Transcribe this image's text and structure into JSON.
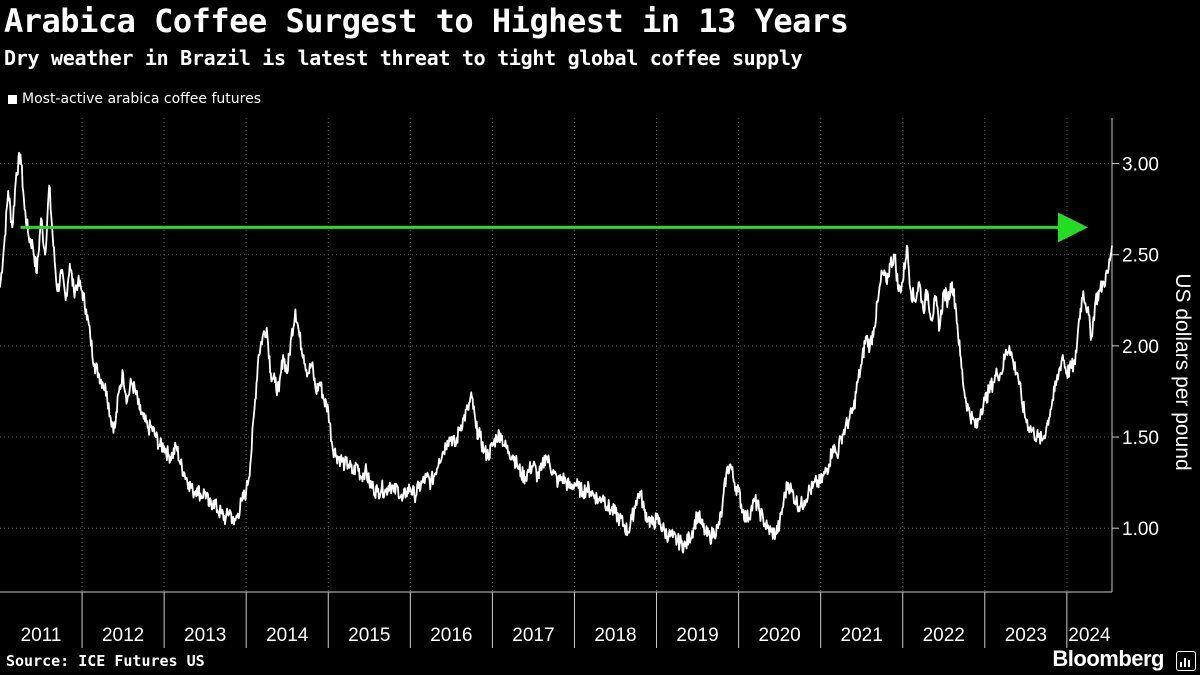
{
  "header": {
    "title": "Arabica Coffee Surgest to Highest in 13 Years",
    "subtitle": "Dry weather in Brazil is latest threat to tight global coffee supply"
  },
  "footer": {
    "source": "Source: ICE Futures US",
    "brand": "Bloomberg"
  },
  "colors": {
    "background": "#000000",
    "series": "#ffffff",
    "arrow": "#22dd22",
    "grid": "#555555"
  },
  "chart_data": {
    "type": "line",
    "xlabel": "",
    "ylabel": "US dollars per pound",
    "legend": "top-left",
    "grid": true,
    "xlim": [
      2011.0,
      2024.55
    ],
    "ylim": [
      0.65,
      3.25
    ],
    "y_axis_side": "right",
    "y_ticks": [
      1.0,
      1.5,
      2.0,
      2.5,
      3.0
    ],
    "y_tick_labels": [
      "1.00",
      "1.50",
      "2.00",
      "2.50",
      "3.00"
    ],
    "x_tick_labels": [
      "2011",
      "2012",
      "2013",
      "2014",
      "2015",
      "2016",
      "2017",
      "2018",
      "2019",
      "2020",
      "2021",
      "2022",
      "2023",
      "2024"
    ],
    "series": [
      {
        "name": "Most-active arabica coffee futures",
        "points": [
          [
            2011.0,
            2.32
          ],
          [
            2011.05,
            2.55
          ],
          [
            2011.1,
            2.85
          ],
          [
            2011.15,
            2.65
          ],
          [
            2011.2,
            2.95
          ],
          [
            2011.25,
            3.05
          ],
          [
            2011.3,
            2.75
          ],
          [
            2011.35,
            2.6
          ],
          [
            2011.4,
            2.55
          ],
          [
            2011.45,
            2.4
          ],
          [
            2011.5,
            2.7
          ],
          [
            2011.55,
            2.5
          ],
          [
            2011.6,
            2.88
          ],
          [
            2011.65,
            2.55
          ],
          [
            2011.7,
            2.3
          ],
          [
            2011.75,
            2.4
          ],
          [
            2011.8,
            2.25
          ],
          [
            2011.85,
            2.45
          ],
          [
            2011.9,
            2.3
          ],
          [
            2011.95,
            2.35
          ],
          [
            2012.0,
            2.3
          ],
          [
            2012.05,
            2.2
          ],
          [
            2012.1,
            2.05
          ],
          [
            2012.15,
            1.9
          ],
          [
            2012.2,
            1.85
          ],
          [
            2012.25,
            1.8
          ],
          [
            2012.3,
            1.75
          ],
          [
            2012.35,
            1.6
          ],
          [
            2012.4,
            1.55
          ],
          [
            2012.45,
            1.75
          ],
          [
            2012.5,
            1.85
          ],
          [
            2012.55,
            1.7
          ],
          [
            2012.6,
            1.8
          ],
          [
            2012.65,
            1.75
          ],
          [
            2012.7,
            1.65
          ],
          [
            2012.75,
            1.6
          ],
          [
            2012.8,
            1.55
          ],
          [
            2012.85,
            1.55
          ],
          [
            2012.9,
            1.5
          ],
          [
            2012.95,
            1.45
          ],
          [
            2013.0,
            1.45
          ],
          [
            2013.05,
            1.4
          ],
          [
            2013.1,
            1.4
          ],
          [
            2013.15,
            1.45
          ],
          [
            2013.2,
            1.35
          ],
          [
            2013.25,
            1.3
          ],
          [
            2013.3,
            1.25
          ],
          [
            2013.35,
            1.2
          ],
          [
            2013.4,
            1.22
          ],
          [
            2013.45,
            1.18
          ],
          [
            2013.5,
            1.2
          ],
          [
            2013.55,
            1.12
          ],
          [
            2013.6,
            1.15
          ],
          [
            2013.65,
            1.1
          ],
          [
            2013.7,
            1.08
          ],
          [
            2013.75,
            1.05
          ],
          [
            2013.8,
            1.1
          ],
          [
            2013.85,
            1.02
          ],
          [
            2013.9,
            1.08
          ],
          [
            2013.95,
            1.15
          ],
          [
            2014.0,
            1.2
          ],
          [
            2014.05,
            1.35
          ],
          [
            2014.1,
            1.65
          ],
          [
            2014.15,
            1.95
          ],
          [
            2014.2,
            2.05
          ],
          [
            2014.25,
            2.1
          ],
          [
            2014.3,
            1.85
          ],
          [
            2014.35,
            1.8
          ],
          [
            2014.4,
            1.75
          ],
          [
            2014.45,
            1.95
          ],
          [
            2014.5,
            1.85
          ],
          [
            2014.55,
            2.05
          ],
          [
            2014.6,
            2.2
          ],
          [
            2014.65,
            2.05
          ],
          [
            2014.7,
            1.95
          ],
          [
            2014.75,
            1.85
          ],
          [
            2014.8,
            1.9
          ],
          [
            2014.85,
            1.75
          ],
          [
            2014.9,
            1.8
          ],
          [
            2014.95,
            1.7
          ],
          [
            2015.0,
            1.65
          ],
          [
            2015.05,
            1.45
          ],
          [
            2015.1,
            1.4
          ],
          [
            2015.15,
            1.38
          ],
          [
            2015.2,
            1.35
          ],
          [
            2015.25,
            1.35
          ],
          [
            2015.3,
            1.3
          ],
          [
            2015.35,
            1.35
          ],
          [
            2015.4,
            1.28
          ],
          [
            2015.45,
            1.32
          ],
          [
            2015.5,
            1.25
          ],
          [
            2015.55,
            1.22
          ],
          [
            2015.6,
            1.2
          ],
          [
            2015.65,
            1.22
          ],
          [
            2015.7,
            1.2
          ],
          [
            2015.75,
            1.25
          ],
          [
            2015.8,
            1.2
          ],
          [
            2015.85,
            1.22
          ],
          [
            2015.9,
            1.15
          ],
          [
            2015.95,
            1.2
          ],
          [
            2016.0,
            1.22
          ],
          [
            2016.05,
            1.18
          ],
          [
            2016.1,
            1.22
          ],
          [
            2016.15,
            1.25
          ],
          [
            2016.2,
            1.28
          ],
          [
            2016.25,
            1.25
          ],
          [
            2016.3,
            1.3
          ],
          [
            2016.35,
            1.38
          ],
          [
            2016.4,
            1.42
          ],
          [
            2016.45,
            1.48
          ],
          [
            2016.5,
            1.5
          ],
          [
            2016.55,
            1.45
          ],
          [
            2016.6,
            1.55
          ],
          [
            2016.65,
            1.6
          ],
          [
            2016.7,
            1.65
          ],
          [
            2016.75,
            1.72
          ],
          [
            2016.8,
            1.55
          ],
          [
            2016.85,
            1.5
          ],
          [
            2016.9,
            1.42
          ],
          [
            2016.95,
            1.4
          ],
          [
            2017.0,
            1.45
          ],
          [
            2017.05,
            1.5
          ],
          [
            2017.1,
            1.52
          ],
          [
            2017.15,
            1.45
          ],
          [
            2017.2,
            1.42
          ],
          [
            2017.25,
            1.4
          ],
          [
            2017.3,
            1.35
          ],
          [
            2017.35,
            1.3
          ],
          [
            2017.4,
            1.28
          ],
          [
            2017.45,
            1.32
          ],
          [
            2017.5,
            1.35
          ],
          [
            2017.55,
            1.28
          ],
          [
            2017.6,
            1.32
          ],
          [
            2017.65,
            1.4
          ],
          [
            2017.7,
            1.35
          ],
          [
            2017.75,
            1.3
          ],
          [
            2017.8,
            1.25
          ],
          [
            2017.85,
            1.28
          ],
          [
            2017.9,
            1.25
          ],
          [
            2017.95,
            1.22
          ],
          [
            2018.0,
            1.25
          ],
          [
            2018.05,
            1.22
          ],
          [
            2018.1,
            1.2
          ],
          [
            2018.15,
            1.22
          ],
          [
            2018.2,
            1.2
          ],
          [
            2018.25,
            1.18
          ],
          [
            2018.3,
            1.15
          ],
          [
            2018.35,
            1.18
          ],
          [
            2018.4,
            1.12
          ],
          [
            2018.45,
            1.1
          ],
          [
            2018.5,
            1.08
          ],
          [
            2018.55,
            1.05
          ],
          [
            2018.6,
            1.02
          ],
          [
            2018.65,
            0.98
          ],
          [
            2018.7,
            1.05
          ],
          [
            2018.75,
            1.15
          ],
          [
            2018.8,
            1.2
          ],
          [
            2018.85,
            1.1
          ],
          [
            2018.9,
            1.05
          ],
          [
            2018.95,
            1.02
          ],
          [
            2019.0,
            1.05
          ],
          [
            2019.05,
            1.02
          ],
          [
            2019.1,
            0.98
          ],
          [
            2019.15,
            0.96
          ],
          [
            2019.2,
            0.95
          ],
          [
            2019.25,
            0.93
          ],
          [
            2019.3,
            0.92
          ],
          [
            2019.35,
            0.9
          ],
          [
            2019.4,
            0.95
          ],
          [
            2019.45,
            1.0
          ],
          [
            2019.5,
            1.08
          ],
          [
            2019.55,
            1.02
          ],
          [
            2019.6,
            0.97
          ],
          [
            2019.65,
            0.95
          ],
          [
            2019.7,
            0.98
          ],
          [
            2019.75,
            1.0
          ],
          [
            2019.8,
            1.1
          ],
          [
            2019.85,
            1.3
          ],
          [
            2019.9,
            1.35
          ],
          [
            2019.95,
            1.25
          ],
          [
            2020.0,
            1.2
          ],
          [
            2020.05,
            1.1
          ],
          [
            2020.1,
            1.05
          ],
          [
            2020.15,
            1.1
          ],
          [
            2020.2,
            1.15
          ],
          [
            2020.25,
            1.1
          ],
          [
            2020.3,
            1.05
          ],
          [
            2020.35,
            1.0
          ],
          [
            2020.4,
            0.98
          ],
          [
            2020.45,
            0.97
          ],
          [
            2020.5,
            1.02
          ],
          [
            2020.55,
            1.15
          ],
          [
            2020.6,
            1.25
          ],
          [
            2020.65,
            1.2
          ],
          [
            2020.7,
            1.15
          ],
          [
            2020.75,
            1.12
          ],
          [
            2020.8,
            1.15
          ],
          [
            2020.85,
            1.2
          ],
          [
            2020.9,
            1.22
          ],
          [
            2020.95,
            1.25
          ],
          [
            2021.0,
            1.25
          ],
          [
            2021.05,
            1.3
          ],
          [
            2021.1,
            1.35
          ],
          [
            2021.15,
            1.45
          ],
          [
            2021.2,
            1.4
          ],
          [
            2021.25,
            1.5
          ],
          [
            2021.3,
            1.55
          ],
          [
            2021.35,
            1.6
          ],
          [
            2021.4,
            1.65
          ],
          [
            2021.45,
            1.8
          ],
          [
            2021.5,
            1.9
          ],
          [
            2021.55,
            2.05
          ],
          [
            2021.6,
            2.0
          ],
          [
            2021.65,
            2.1
          ],
          [
            2021.7,
            2.25
          ],
          [
            2021.75,
            2.4
          ],
          [
            2021.8,
            2.35
          ],
          [
            2021.85,
            2.45
          ],
          [
            2021.9,
            2.5
          ],
          [
            2021.95,
            2.3
          ],
          [
            2022.0,
            2.35
          ],
          [
            2022.05,
            2.55
          ],
          [
            2022.1,
            2.3
          ],
          [
            2022.15,
            2.25
          ],
          [
            2022.2,
            2.35
          ],
          [
            2022.25,
            2.2
          ],
          [
            2022.3,
            2.3
          ],
          [
            2022.35,
            2.15
          ],
          [
            2022.4,
            2.25
          ],
          [
            2022.45,
            2.1
          ],
          [
            2022.5,
            2.3
          ],
          [
            2022.55,
            2.25
          ],
          [
            2022.6,
            2.35
          ],
          [
            2022.65,
            2.2
          ],
          [
            2022.7,
            1.95
          ],
          [
            2022.75,
            1.75
          ],
          [
            2022.8,
            1.65
          ],
          [
            2022.85,
            1.6
          ],
          [
            2022.9,
            1.55
          ],
          [
            2022.95,
            1.65
          ],
          [
            2023.0,
            1.7
          ],
          [
            2023.05,
            1.75
          ],
          [
            2023.1,
            1.8
          ],
          [
            2023.15,
            1.85
          ],
          [
            2023.2,
            1.85
          ],
          [
            2023.25,
            1.95
          ],
          [
            2023.3,
            2.0
          ],
          [
            2023.35,
            1.9
          ],
          [
            2023.4,
            1.85
          ],
          [
            2023.45,
            1.7
          ],
          [
            2023.5,
            1.6
          ],
          [
            2023.55,
            1.55
          ],
          [
            2023.6,
            1.52
          ],
          [
            2023.65,
            1.5
          ],
          [
            2023.7,
            1.48
          ],
          [
            2023.75,
            1.55
          ],
          [
            2023.8,
            1.65
          ],
          [
            2023.85,
            1.75
          ],
          [
            2023.9,
            1.85
          ],
          [
            2023.95,
            1.95
          ],
          [
            2024.0,
            1.85
          ],
          [
            2024.05,
            1.88
          ],
          [
            2024.1,
            1.9
          ],
          [
            2024.15,
            2.15
          ],
          [
            2024.2,
            2.3
          ],
          [
            2024.25,
            2.2
          ],
          [
            2024.3,
            2.05
          ],
          [
            2024.35,
            2.25
          ],
          [
            2024.4,
            2.3
          ],
          [
            2024.45,
            2.35
          ],
          [
            2024.5,
            2.4
          ],
          [
            2024.55,
            2.55
          ]
        ]
      }
    ],
    "annotations": [
      {
        "type": "arrow",
        "from": [
          2011.25,
          2.65
        ],
        "to": [
          2024.55,
          2.65
        ],
        "color": "#22dd22"
      }
    ]
  }
}
